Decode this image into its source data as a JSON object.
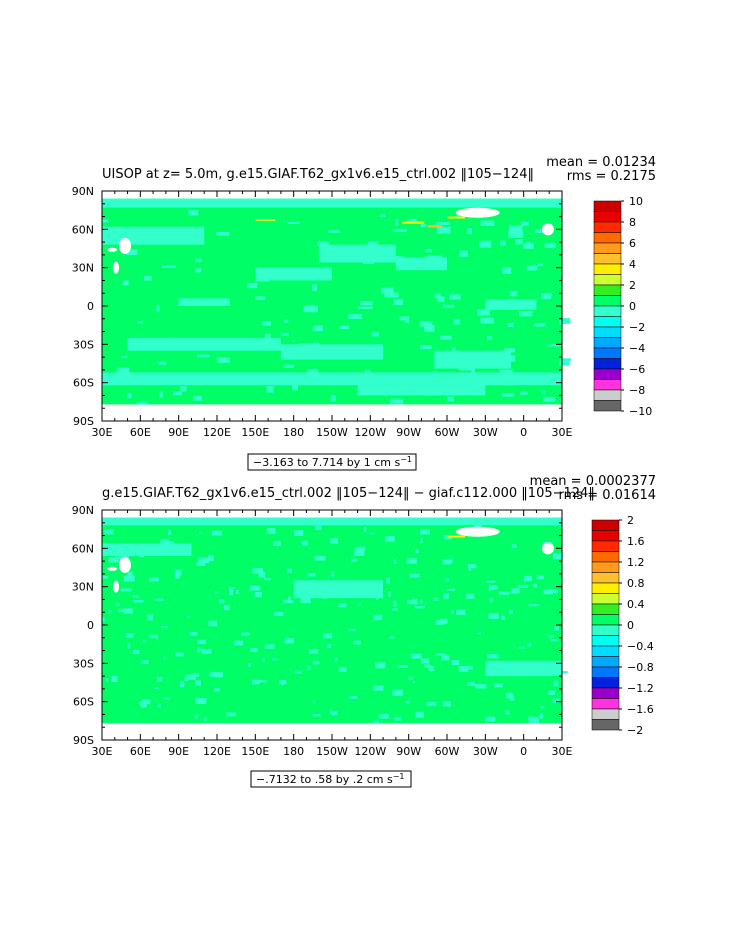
{
  "chart_data": [
    {
      "type": "heatmap",
      "title": "UISOP at z=     5.0m, g.e15.GIAF.T62_gx1v6.e15_ctrl.002 ‖105−124‖",
      "stats": {
        "mean": "mean = 0.01234",
        "rms": "rms = 0.2175"
      },
      "xticks": [
        "30E",
        "60E",
        "90E",
        "120E",
        "150E",
        "180",
        "150W",
        "120W",
        "90W",
        "60W",
        "30W",
        "0",
        "30E"
      ],
      "yticks": [
        "90N",
        "60N",
        "30N",
        "0",
        "30S",
        "60S",
        "90S"
      ],
      "range_label": "−3.163 to 7.714 by 1 cm s",
      "range_exp": "−1",
      "colorbar": {
        "labels": [
          "10",
          "8",
          "6",
          "4",
          "2",
          "0",
          "−2",
          "−4",
          "−6",
          "−8",
          "−10"
        ],
        "colors": [
          "#cc0000",
          "#e80000",
          "#ff2a00",
          "#ff6a00",
          "#ff9a1a",
          "#ffc030",
          "#ffee00",
          "#ccff33",
          "#33ee22",
          "#00ff66",
          "#33ffcc",
          "#00ffee",
          "#00ddff",
          "#00aaff",
          "#0077ff",
          "#0022dd",
          "#9900cc",
          "#ff33dd",
          "#cccccc",
          "#666666"
        ]
      },
      "field": {
        "base": "#00ff66",
        "secondary": "#33ffcc",
        "hotspot": "#ffee00",
        "land": "#ffffff"
      }
    },
    {
      "type": "heatmap",
      "title": "g.e15.GIAF.T62_gx1v6.e15_ctrl.002 ‖105−124‖ − giaf.c112.000 ‖105−124‖",
      "stats": {
        "mean": "mean = 0.0002377",
        "rms": "rms = 0.01614"
      },
      "xticks": [
        "30E",
        "60E",
        "90E",
        "120E",
        "150E",
        "180",
        "150W",
        "120W",
        "90W",
        "60W",
        "30W",
        "0",
        "30E"
      ],
      "yticks": [
        "90N",
        "60N",
        "30N",
        "0",
        "30S",
        "60S",
        "90S"
      ],
      "range_label": "−.7132 to .58 by .2 cm s",
      "range_exp": "−1",
      "colorbar": {
        "labels": [
          "2",
          "1.6",
          "1.2",
          "0.8",
          "0.4",
          "0",
          "−0.4",
          "−0.8",
          "−1.2",
          "−1.6",
          "−2"
        ],
        "colors": [
          "#cc0000",
          "#e80000",
          "#ff2a00",
          "#ff6a00",
          "#ff9a1a",
          "#ffc030",
          "#ffee00",
          "#ccff33",
          "#33ee22",
          "#00ff66",
          "#33ffcc",
          "#00ffee",
          "#00ddff",
          "#00aaff",
          "#0077ff",
          "#0022dd",
          "#9900cc",
          "#ff33dd",
          "#cccccc",
          "#666666"
        ]
      },
      "field": {
        "base": "#00ff66",
        "secondary": "#33ffcc",
        "hotspot": "#ffee00",
        "land": "#ffffff"
      }
    }
  ]
}
